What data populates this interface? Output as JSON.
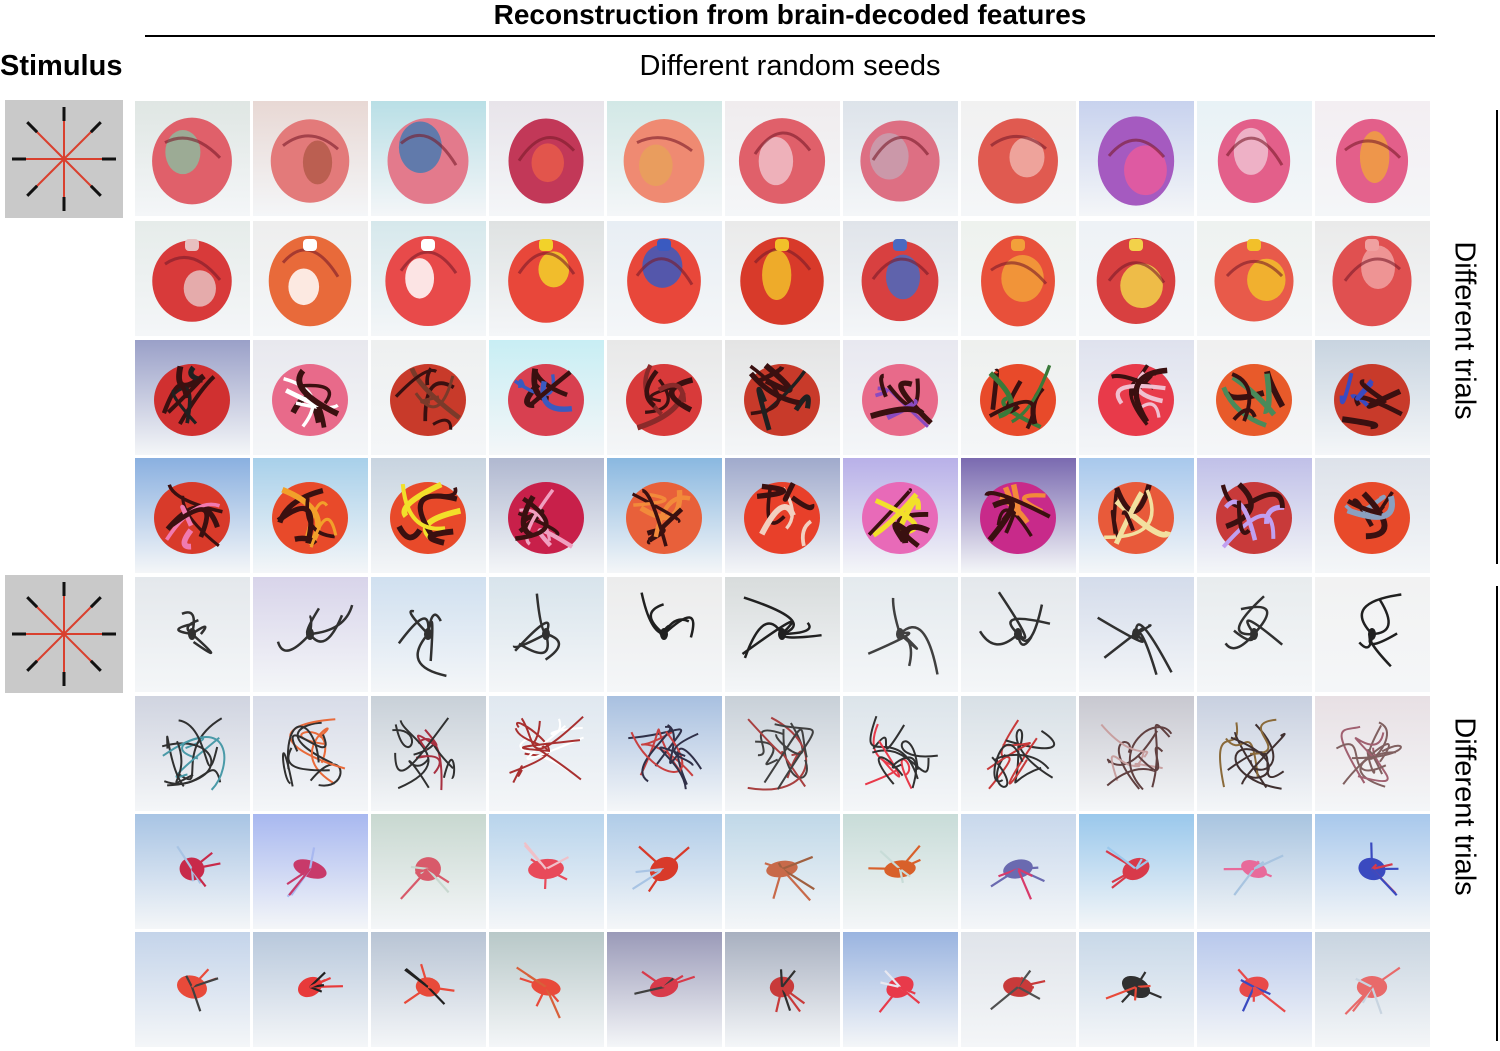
{
  "header": {
    "title": "Reconstruction from brain-decoded features",
    "stimulus_label": "Stimulus",
    "seeds_label": "Different random seeds"
  },
  "side_labels": {
    "group1": "Different trials",
    "group2": "Different trials"
  },
  "groups": [
    {
      "stimulus": {
        "background": "#c9c9c9",
        "line_color": "#d9402e",
        "tip_color": "#111111"
      },
      "rows": [
        {
          "bg": [
            "#dfe6e3",
            "#e8d8d4",
            "#b9dfe6",
            "#e8e4ea",
            "#d2e8e6",
            "#f0ecee",
            "#dde3ea",
            "#f1f1f1",
            "#c8d2ee",
            "#e8f2f6",
            "#f3eef2"
          ],
          "fg": [
            "#e0606a",
            "#e37a7a",
            "#e37a8c",
            "#c23858",
            "#ef8a72",
            "#e0606a",
            "#dd6f83",
            "#e05a50",
            "#a55ac0",
            "#e35f8a",
            "#e35f8a"
          ],
          "accent": [
            "#8fb89c",
            "#b45a4a",
            "#4a7ab0",
            "#e85a4a",
            "#e8a05a",
            "#f0c0c8",
            "#c8a0b0",
            "#f0b0a8",
            "#e85a9c",
            "#f0c0d0",
            "#f0a040"
          ],
          "style": "blob"
        },
        {
          "bg": [
            "#e6ecea",
            "#eeeeee",
            "#d6e8ec",
            "#dfe2e2",
            "#e8eef4",
            "#eaeaea",
            "#e0e4ea",
            "#eef2ee",
            "#eef2f6",
            "#eef2f0",
            "#eaeaea"
          ],
          "fg": [
            "#d83a3a",
            "#e86a3a",
            "#e84a4a",
            "#e8473a",
            "#e8473a",
            "#d83a2a",
            "#d84040",
            "#e8503a",
            "#d84040",
            "#e85a4a",
            "#e05050"
          ],
          "accent": [
            "#e8c0c0",
            "#ffffff",
            "#ffffff",
            "#f2d22a",
            "#3a5ac0",
            "#f2c02a",
            "#4a6ac0",
            "#f2a03a",
            "#f2d24a",
            "#f2c02a",
            "#f0a0a0"
          ],
          "style": "object"
        },
        {
          "bg": [
            "#9aa0c8",
            "#e8e8ee",
            "#eef0f0",
            "#c8eef4",
            "#e8e8e8",
            "#e4e4e4",
            "#e8e8f0",
            "#eef0ee",
            "#dfe2ee",
            "#f0f0f0",
            "#c8d4e0"
          ],
          "fg": [
            "#d03030",
            "#e86a8a",
            "#c83a2a",
            "#d84050",
            "#d83a3a",
            "#c83a2a",
            "#e86a8a",
            "#e84a2a",
            "#e83a4a",
            "#e85a2a",
            "#c83a2a"
          ],
          "accent": [
            "#202020",
            "#ffffff",
            "#7a3a2a",
            "#3a5ac0",
            "#8a2a2a",
            "#202020",
            "#8a4ac0",
            "#3a7a3a",
            "#f0c0d0",
            "#4a8a5a",
            "#3a4ac0"
          ],
          "style": "messy"
        },
        {
          "bg": [
            "#8ab0e0",
            "#a8d0ea",
            "#c8d4e0",
            "#b0b8d0",
            "#8ab8e0",
            "#a0aacc",
            "#b8b0e8",
            "#7a6ab0",
            "#a8c8ec",
            "#c0c0e8",
            "#dde2ea"
          ],
          "fg": [
            "#d83a2a",
            "#e84a2a",
            "#e84a2a",
            "#c8204a",
            "#e8603a",
            "#e8402a",
            "#e86ab8",
            "#c82a8a",
            "#e85a3a",
            "#c83a3a",
            "#e84a2a"
          ],
          "accent": [
            "#f07ab0",
            "#f2a02a",
            "#f2e02a",
            "#f0a0c0",
            "#f28a3a",
            "#f2d0c0",
            "#f2e02a",
            "#f28a3a",
            "#f2e0a0",
            "#c0a0f0",
            "#8aa0c0"
          ],
          "style": "messy"
        }
      ]
    },
    {
      "stimulus": {
        "background": "#c9c9c9",
        "line_color": "#d9402e",
        "tip_color": "#111111"
      },
      "rows": [
        {
          "bg": [
            "#e4e8ec",
            "#d8d4ea",
            "#d0e0f0",
            "#d8e4ec",
            "#ececec",
            "#d8dcdc",
            "#e4eaee",
            "#e4e8ec",
            "#d4dceb",
            "#e8ecee",
            "#f2f2f2"
          ],
          "fg": [
            "#303030",
            "#303030",
            "#303030",
            "#303030",
            "#202020",
            "#202020",
            "#404040",
            "#303030",
            "#303030",
            "#303030",
            "#202020"
          ],
          "accent": [
            "#e4e8ec",
            "#d8d4ea",
            "#d0e0f0",
            "#d8e4ec",
            "#ececec",
            "#d8dcdc",
            "#e4eaee",
            "#e4e8ec",
            "#d4dceb",
            "#e8ecee",
            "#f2f2f2"
          ],
          "style": "spider"
        },
        {
          "bg": [
            "#d0d4e0",
            "#d8dce8",
            "#c8d0d8",
            "#e0e8f0",
            "#a8c0e0",
            "#c8d0d8",
            "#dce4ea",
            "#d8e0e6",
            "#c8c8d0",
            "#c8d0e0",
            "#e8e0e4"
          ],
          "fg": [
            "#303030",
            "#303030",
            "#303030",
            "#a83030",
            "#303048",
            "#404040",
            "#303030",
            "#303030",
            "#604040",
            "#403030",
            "#806060"
          ],
          "accent": [
            "#4a9aa8",
            "#e86a3a",
            "#a83040",
            "#ffffff",
            "#c84040",
            "#a84040",
            "#e83a4a",
            "#c83a3a",
            "#c8a0a0",
            "#8a6a3a",
            "#a06070"
          ],
          "style": "tangle"
        },
        {
          "bg": [
            "#a8c4e4",
            "#a8b8f0",
            "#c8d8d0",
            "#b8d4ec",
            "#b0cce8",
            "#c0d8e8",
            "#c8dcd8",
            "#c8d8ec",
            "#9ac8ec",
            "#a8c4e0",
            "#a8c8ec"
          ],
          "fg": [
            "#c82a4a",
            "#c83a6a",
            "#d85a6a",
            "#e84a5a",
            "#d83a2a",
            "#c86a4a",
            "#d8602a",
            "#6a6ab0",
            "#d83a4a",
            "#e86a9a",
            "#3a4ac0"
          ],
          "accent": [
            "#a8c4e4",
            "#a8b8f0",
            "#c8d8d0",
            "#f0c0c8",
            "#a8c4e4",
            "#a06040",
            "#c8dcd8",
            "#d83a6a",
            "#9ac8ec",
            "#a8c4e0",
            "#d83a4a"
          ],
          "style": "bug"
        },
        {
          "bg": [
            "#c4d4ea",
            "#b8c8dc",
            "#b8c4d4",
            "#b8c8c8",
            "#9a9ab8",
            "#a8b0c0",
            "#9ab4e0",
            "#e0e4ea",
            "#c8d8e8",
            "#b8c8ec",
            "#c8d4e0"
          ],
          "fg": [
            "#e84a3a",
            "#e83a3a",
            "#e84a3a",
            "#e84a3a",
            "#d83a4a",
            "#c83a3a",
            "#e83a4a",
            "#c83a3a",
            "#303030",
            "#e84a4a",
            "#e86a6a"
          ],
          "accent": [
            "#404040",
            "#202020",
            "#202020",
            "#d8603a",
            "#404040",
            "#303030",
            "#e8e8f0",
            "#505050",
            "#e84a3a",
            "#3a4ac0",
            "#c8d4e0"
          ],
          "style": "bug"
        }
      ]
    }
  ]
}
